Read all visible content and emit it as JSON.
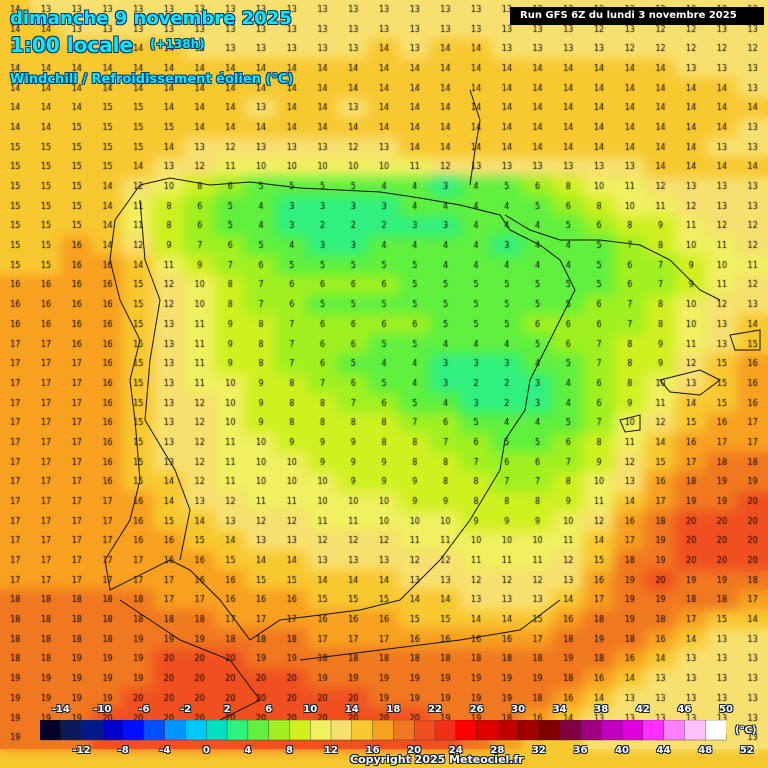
{
  "header": {
    "date": "dimanche 9 novembre 2025",
    "time": "1:00 locale",
    "lead": "(+138h)",
    "variable": "Windchill / Refroidissement éolien (°C)",
    "run": "Run GFS 6Z du lundi 3 novembre 2025"
  },
  "legend": {
    "unit": "(°C)",
    "labels_top": [
      "-14",
      "-10",
      "-6",
      "-2",
      "2",
      "6",
      "10",
      "14",
      "18",
      "22",
      "26",
      "30",
      "34",
      "38",
      "42",
      "46",
      "50"
    ],
    "labels_bottom": [
      "-12",
      "-8",
      "-4",
      "0",
      "4",
      "8",
      "12",
      "16",
      "20",
      "24",
      "28",
      "32",
      "36",
      "40",
      "44",
      "48",
      "52"
    ],
    "colors": [
      "#04002a",
      "#0a1a5a",
      "#001a8c",
      "#0000cc",
      "#0010ff",
      "#0050ff",
      "#0096ff",
      "#00c8ff",
      "#00e0c0",
      "#30f080",
      "#60f040",
      "#a0f020",
      "#d0f020",
      "#f0f060",
      "#f8e070",
      "#f8c830",
      "#f8a020",
      "#f07820",
      "#f05020",
      "#f03018",
      "#ff0000",
      "#e00000",
      "#c00000",
      "#a00000",
      "#800000",
      "#800040",
      "#a00080",
      "#c000c0",
      "#e000e0",
      "#ff30ff",
      "#ff80ff",
      "#ffc0ff",
      "#ffffff"
    ]
  },
  "map": {
    "region": "Péninsule Ibérique",
    "grid_rows": [
      "14 13 13 13 13 13 13 13 13 13 13 13 13 13 13 13 13 13 13 13 13 12 12 13 13",
      "14 14 13 13 13 13 13 13 13 13 13 13 13 13 13 13 13 13 13 12 13 12 12 13 13",
      "14 14 14 14 14 14 13 13 13 13 13 13 14 13 14 14 13 13 13 13 12 12 12 12 12",
      "14 14 14 14 14 14 14 14 14 14 14 14 14 14 14 14 14 14 14 14 14 14 13 13 13",
      "14 14 14 14 14 14 14 14 14 14 14 14 14 14 14 14 14 14 14 14 14 14 14 14 13",
      "14 14 14 15 15 14 14 14 13 14 14 13 14 14 14 14 14 14 14 14 14 14 14 14 14",
      "14 14 15 15 15 15 14 14 14 14 14 14 14 14 14 14 14 14 14 14 14 14 14 14 13",
      "15 15 15 15 15 14 13 12 13 13 13 12 13 14 14 14 14 14 14 14 14 14 14 13 13",
      "15 15 15 15 14 13 12 11 10 10 10 10 10 11 12 13 13 13 13 13 13 14 14 14 14",
      "15 15 15 14 12 10 8 6 5 5 5 5 4 4 3 4 5 6 8 10 11 12 13 13 13",
      "15 15 15 14 11 8 6 5 4 3 3 3 3 4 4 4 4 5 6 8 10 11 12 13 13",
      "15 15 15 14 11 8 6 5 4 3 2 2 2 3 3 4 4 4 5 6 8 9 11 12 12",
      "15 15 16 14 12 9 7 6 5 4 3 3 4 4 4 4 3 4 4 5 7 8 10 11 12",
      "15 15 16 16 14 11 9 7 6 5 5 5 5 5 4 4 4 4 4 5 6 7 9 10 11",
      "16 16 16 16 15 12 10 8 7 6 6 6 6 5 5 5 5 5 5 5 6 7 9 11 12",
      "16 16 16 16 15 12 10 8 7 6 5 5 5 5 5 5 5 5 5 6 7 8 10 12 13",
      "16 16 16 16 15 13 11 9 8 7 6 6 6 6 5 5 5 6 6 6 7 8 10 13 14",
      "17 17 16 16 15 13 11 9 8 7 6 6 5 5 4 4 4 5 6 7 8 9 11 13 15",
      "17 17 17 16 15 13 11 9 8 7 6 5 4 4 3 3 3 4 5 7 8 9 12 15 16",
      "17 17 17 16 15 13 11 10 9 8 7 6 5 4 3 2 2 3 4 6 8 10 13 15 16",
      "17 17 17 16 15 13 12 10 9 8 8 7 6 5 4 3 2 3 4 6 9 11 14 15 16",
      "17 17 17 16 15 13 12 10 9 8 8 8 8 7 6 5 4 4 5 7 10 12 15 16 17",
      "17 17 17 16 15 13 12 11 10 9 9 9 8 8 7 6 5 5 6 8 11 14 16 17 17",
      "17 17 17 16 15 13 12 11 10 10 9 9 9 8 8 7 6 6 7 9 12 15 17 18 18",
      "17 17 17 16 15 14 12 11 10 10 10 9 9 9 8 8 7 7 8 10 13 16 18 19 19",
      "17 17 17 17 16 14 13 12 11 11 10 10 10 9 9 8 8 8 9 11 14 17 19 19 20",
      "17 17 17 17 16 15 14 13 12 12 11 11 10 10 10 9 9 9 10 12 16 18 20 20 20",
      "17 17 17 17 16 16 15 14 13 13 12 12 12 11 11 10 10 10 11 14 17 19 20 20 20",
      "17 17 17 17 17 16 16 15 14 14 13 13 13 12 12 11 11 11 12 15 18 19 20 20 20",
      "17 17 17 17 17 17 16 16 15 15 14 14 14 13 13 12 12 12 13 16 19 20 19 19 18",
      "18 18 18 18 18 17 17 16 16 16 15 15 15 14 14 13 13 13 14 17 19 19 18 18 17",
      "18 18 18 18 18 18 18 17 17 17 16 16 16 15 15 14 14 15 16 18 19 18 17 15 14",
      "18 18 18 18 19 19 19 18 18 18 17 17 17 16 16 16 16 17 18 19 18 16 14 13 13",
      "18 18 19 19 19 20 20 20 19 19 18 18 18 18 18 18 18 18 19 18 16 14 13 13 13",
      "19 19 19 19 19 20 20 20 20 20 19 19 19 19 19 19 19 19 18 16 14 13 13 13 13",
      "19 19 19 19 20 20 20 20 20 20 20 20 19 19 19 19 19 18 16 14 13 13 13 13 13",
      "19 19 19 20 20 20 20 20 20 20 20 20 20 20 19 19 18 16 14 13 13 13 13 13 13",
      "19 19 19 20 20 20 20 20 20 20 20 20 20 20 20 19 17 15 14 13 13 13 13 13 13"
    ]
  },
  "footer": {
    "copyright": "Copyright 2025 Meteociel.fr"
  }
}
